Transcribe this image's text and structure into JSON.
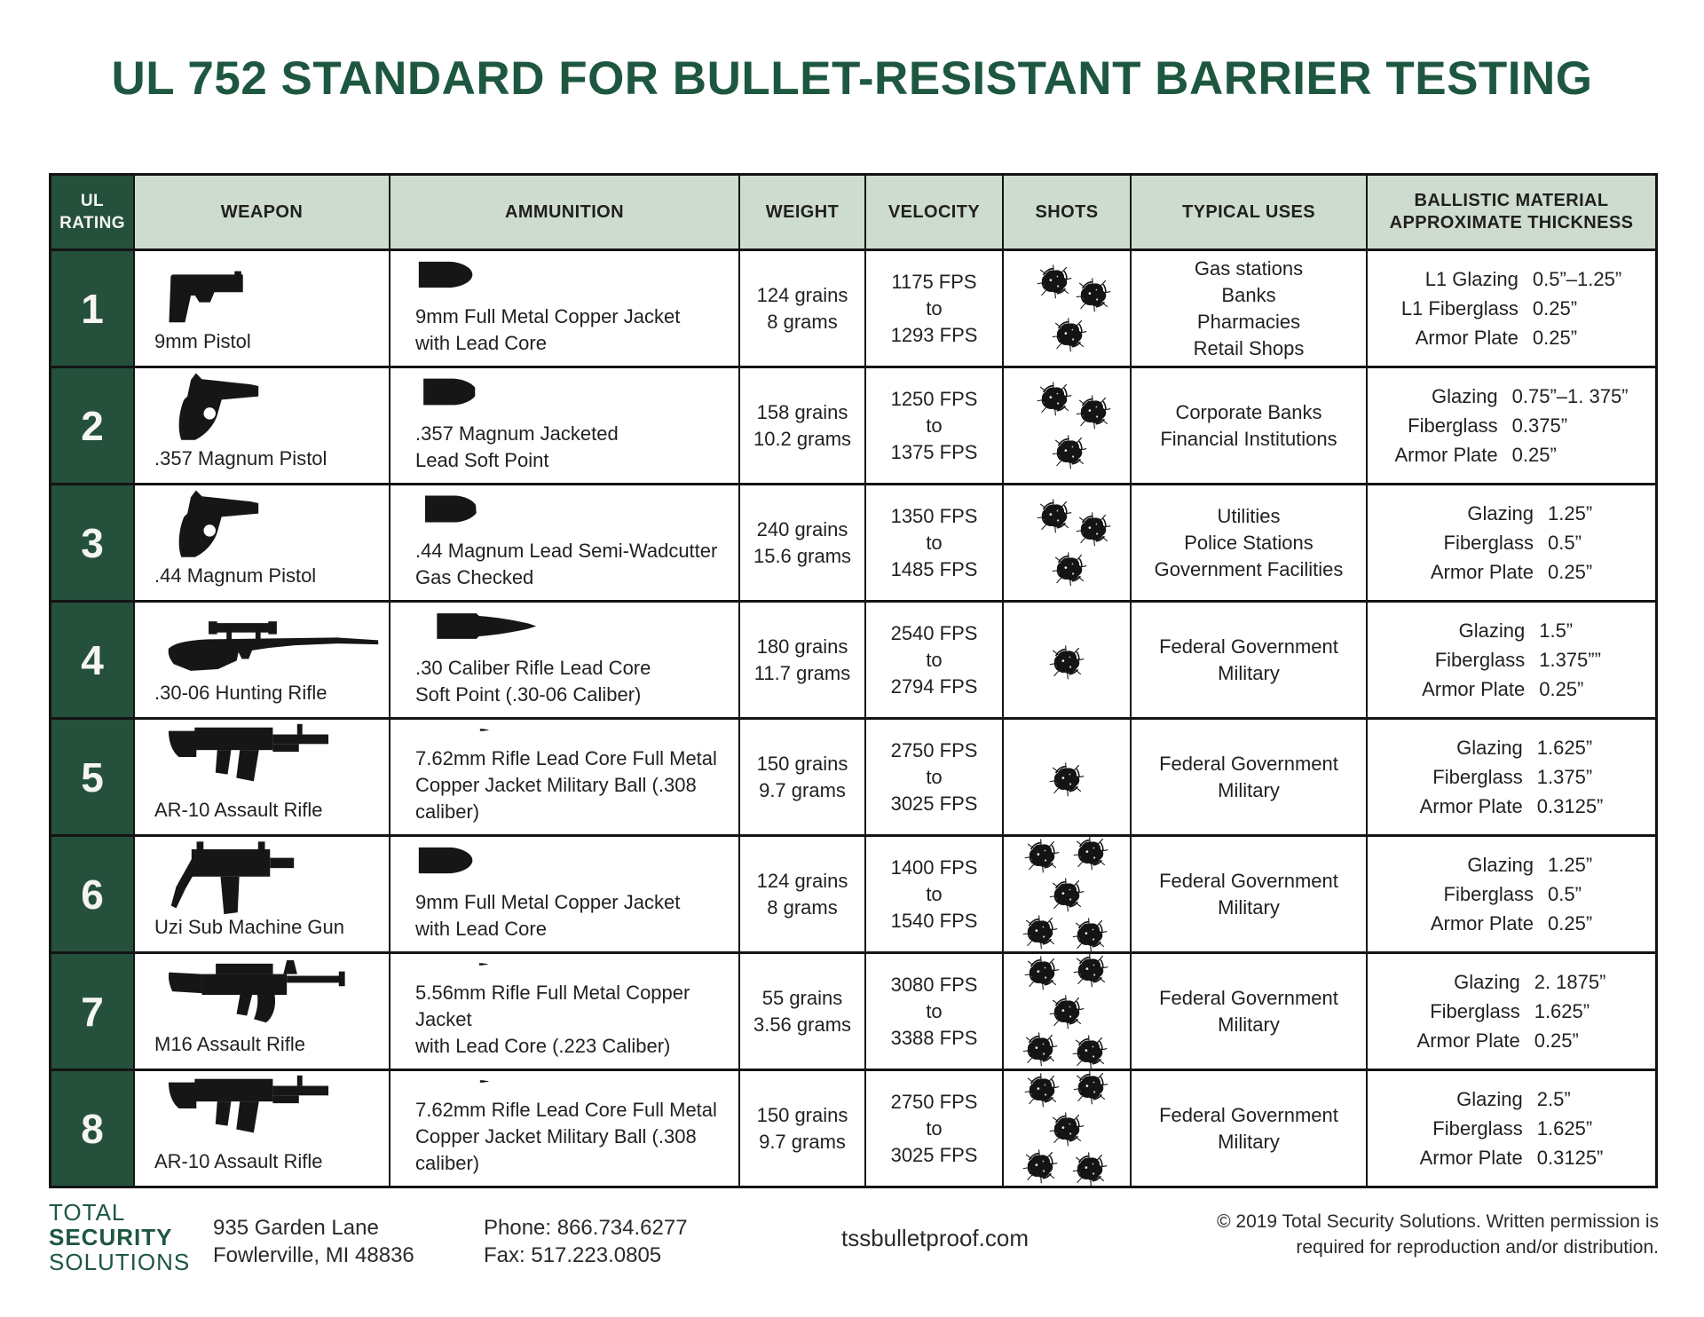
{
  "page": {
    "title": "UL 752 STANDARD FOR BULLET-RESISTANT BARRIER TESTING"
  },
  "colors": {
    "brand_green_dark": "#24503C",
    "brand_green_title": "#1E5740",
    "header_bg": "#CEDCCF",
    "grid_line": "#141414",
    "text": "#231F20"
  },
  "table": {
    "columns": [
      {
        "label": "UL\nRATING"
      },
      {
        "label": "WEAPON"
      },
      {
        "label": "AMMUNITION"
      },
      {
        "label": "WEIGHT"
      },
      {
        "label": "VELOCITY"
      },
      {
        "label": "SHOTS"
      },
      {
        "label": "TYPICAL USES"
      },
      {
        "label": "BALLISTIC MATERIAL\nAPPROXIMATE THICKNESS"
      }
    ],
    "rows": [
      {
        "rating": "1",
        "weapon": {
          "label": "9mm Pistol",
          "icon": "pistol"
        },
        "ammunition": {
          "text": "9mm Full Metal Copper Jacket\nwith Lead Core",
          "icon": "bullet-pistol"
        },
        "weight": "124 grains\n8 grams",
        "velocity": "1175 FPS\nto\n1293 FPS",
        "shots": 3,
        "uses": "Gas stations\nBanks\nPharmacies\nRetail Shops",
        "ballistic": [
          {
            "label": "L1 Glazing",
            "value": "0.5”–1.25”"
          },
          {
            "label": "L1 Fiberglass",
            "value": "0.25”"
          },
          {
            "label": "Armor Plate",
            "value": "0.25”"
          }
        ]
      },
      {
        "rating": "2",
        "weapon": {
          "label": ".357 Magnum Pistol",
          "icon": "revolver"
        },
        "ammunition": {
          "text": ".357 Magnum Jacketed\nLead Soft Point",
          "icon": "bullet-magnum"
        },
        "weight": "158 grains\n10.2 grams",
        "velocity": "1250 FPS\nto\n1375 FPS",
        "shots": 3,
        "uses": "Corporate Banks\nFinancial Institutions",
        "ballistic": [
          {
            "label": "Glazing",
            "value": "0.75”–1. 375”"
          },
          {
            "label": "Fiberglass",
            "value": "0.375”"
          },
          {
            "label": "Armor Plate",
            "value": "0.25”"
          }
        ]
      },
      {
        "rating": "3",
        "weapon": {
          "label": ".44 Magnum Pistol",
          "icon": "revolver"
        },
        "ammunition": {
          "text": ".44 Magnum Lead Semi-Wadcutter\nGas Checked",
          "icon": "bullet-wadcutter"
        },
        "weight": "240 grains\n15.6 grams",
        "velocity": "1350 FPS\nto\n1485 FPS",
        "shots": 3,
        "uses": "Utilities\nPolice Stations\nGovernment Facilities",
        "ballistic": [
          {
            "label": "Glazing",
            "value": "1.25”"
          },
          {
            "label": "Fiberglass",
            "value": "0.5”"
          },
          {
            "label": "Armor Plate",
            "value": "0.25”"
          }
        ]
      },
      {
        "rating": "4",
        "weapon": {
          "label": ".30-06 Hunting Rifle",
          "icon": "hunting-rifle"
        },
        "ammunition": {
          "text": ".30 Caliber Rifle Lead Core\nSoft Point (.30-06 Caliber)",
          "icon": "bullet-rifle-large"
        },
        "weight": "180 grains\n11.7 grams",
        "velocity": "2540 FPS\nto\n2794 FPS",
        "shots": 1,
        "uses": "Federal Government\nMilitary",
        "ballistic": [
          {
            "label": "Glazing",
            "value": "1.5”"
          },
          {
            "label": "Fiberglass",
            "value": "1.375””"
          },
          {
            "label": "Armor Plate",
            "value": "0.25”"
          }
        ]
      },
      {
        "rating": "5",
        "weapon": {
          "label": "AR-10 Assault Rifle",
          "icon": "ar10"
        },
        "ammunition": {
          "text": "7.62mm Rifle Lead Core Full Metal\nCopper Jacket Military Ball (.308 caliber)",
          "icon": "bullet-rifle"
        },
        "weight": "150 grains\n9.7 grams",
        "velocity": "2750 FPS\nto\n3025 FPS",
        "shots": 1,
        "uses": "Federal Government\nMilitary",
        "ballistic": [
          {
            "label": "Glazing",
            "value": "1.625”"
          },
          {
            "label": "Fiberglass",
            "value": "1.375”"
          },
          {
            "label": "Armor Plate",
            "value": "0.3125”"
          }
        ]
      },
      {
        "rating": "6",
        "weapon": {
          "label": "Uzi Sub Machine Gun",
          "icon": "uzi"
        },
        "ammunition": {
          "text": "9mm Full Metal Copper Jacket\nwith Lead Core",
          "icon": "bullet-pistol"
        },
        "weight": "124 grains\n8 grams",
        "velocity": "1400 FPS\nto\n1540 FPS",
        "shots": 5,
        "uses": "Federal Government\nMilitary",
        "ballistic": [
          {
            "label": "Glazing",
            "value": "1.25”"
          },
          {
            "label": "Fiberglass",
            "value": "0.5”"
          },
          {
            "label": "Armor Plate",
            "value": "0.25”"
          }
        ]
      },
      {
        "rating": "7",
        "weapon": {
          "label": "M16 Assault Rifle",
          "icon": "m16"
        },
        "ammunition": {
          "text": "5.56mm Rifle Full Metal Copper Jacket\nwith Lead Core (.223 Caliber)",
          "icon": "bullet-rifle-slim"
        },
        "weight": "55 grains\n3.56 grams",
        "velocity": "3080 FPS\nto\n3388 FPS",
        "shots": 5,
        "uses": "Federal Government\nMilitary",
        "ballistic": [
          {
            "label": "Glazing",
            "value": "2. 1875”"
          },
          {
            "label": "Fiberglass",
            "value": "1.625”"
          },
          {
            "label": "Armor Plate",
            "value": "0.25”"
          }
        ]
      },
      {
        "rating": "8",
        "weapon": {
          "label": "AR-10 Assault Rifle",
          "icon": "ar10"
        },
        "ammunition": {
          "text": "7.62mm Rifle Lead Core Full Metal\nCopper Jacket Military Ball (.308 caliber)",
          "icon": "bullet-rifle"
        },
        "weight": "150 grains\n9.7 grams",
        "velocity": "2750 FPS\nto\n3025 FPS",
        "shots": 5,
        "uses": "Federal Government\nMilitary",
        "ballistic": [
          {
            "label": "Glazing",
            "value": "2.5”"
          },
          {
            "label": "Fiberglass",
            "value": "1.625”"
          },
          {
            "label": "Armor Plate",
            "value": "0.3125”"
          }
        ]
      }
    ]
  },
  "footer": {
    "logo_line1": "TOTAL",
    "logo_line2": "SECURITY",
    "logo_line3": "SOLUTIONS",
    "address_line1": "935 Garden Lane",
    "address_line2": "Fowlerville, MI 48836",
    "phone": "Phone: 866.734.6277",
    "fax": "Fax: 517.223.0805",
    "website": "tssbulletproof.com",
    "copyright": "© 2019 Total Security Solutions. Written permission is\nrequired for reproduction and/or distribution."
  }
}
